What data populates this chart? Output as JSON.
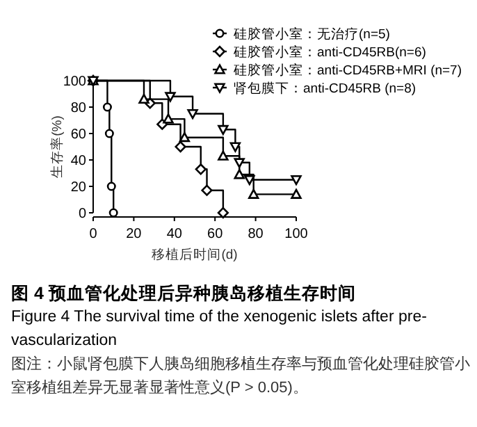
{
  "chart_data": {
    "type": "step",
    "title": "图 4 预血管化处理后异种胰岛移植生存时间",
    "subtitle": "Figure 4    The survival time of the xenogenic islets after pre-vascularization",
    "xlabel": "移植后时间(d)",
    "ylabel": "生存率(%)",
    "annotations": [
      "图注：小鼠肾包膜下人胰岛细胞移植生存率与预血管化处理硅胶管小室移植组差异无显著显著性意义(P > 0.05)。"
    ],
    "xlim": [
      0,
      100
    ],
    "ylim": [
      0,
      100
    ],
    "xticks": [
      0,
      20,
      40,
      60,
      80,
      100
    ],
    "yticks": [
      0,
      20,
      40,
      60,
      80,
      100
    ],
    "legend": "top right",
    "series": [
      {
        "name": "硅胶管小室：无治疗(n=5)",
        "color": "#000000",
        "marker": "circle",
        "x": [
          0,
          7,
          8,
          9,
          10
        ],
        "values": [
          100,
          80,
          60,
          20,
          0
        ]
      },
      {
        "name": "硅胶管小室：anti-CD45RB(n=6)",
        "color": "#000000",
        "marker": "diamond",
        "x": [
          0,
          28,
          34,
          43,
          53,
          56,
          64
        ],
        "values": [
          100,
          83,
          67,
          50,
          33,
          17,
          0
        ]
      },
      {
        "name": "硅胶管小室：anti-CD45RB+MRI (n=7)",
        "color": "#000000",
        "marker": "triangle",
        "x": [
          0,
          25,
          37,
          45,
          64,
          72,
          79,
          100
        ],
        "values": [
          100,
          86,
          71,
          57,
          43,
          29,
          14,
          14
        ]
      },
      {
        "name": "肾包膜下：anti-CD45RB (n=8)",
        "color": "#000000",
        "marker": "triangle_down",
        "x": [
          0,
          38,
          49,
          64,
          70,
          72,
          77,
          100
        ],
        "values": [
          100,
          88,
          75,
          63,
          50,
          38,
          25,
          25
        ]
      }
    ]
  }
}
